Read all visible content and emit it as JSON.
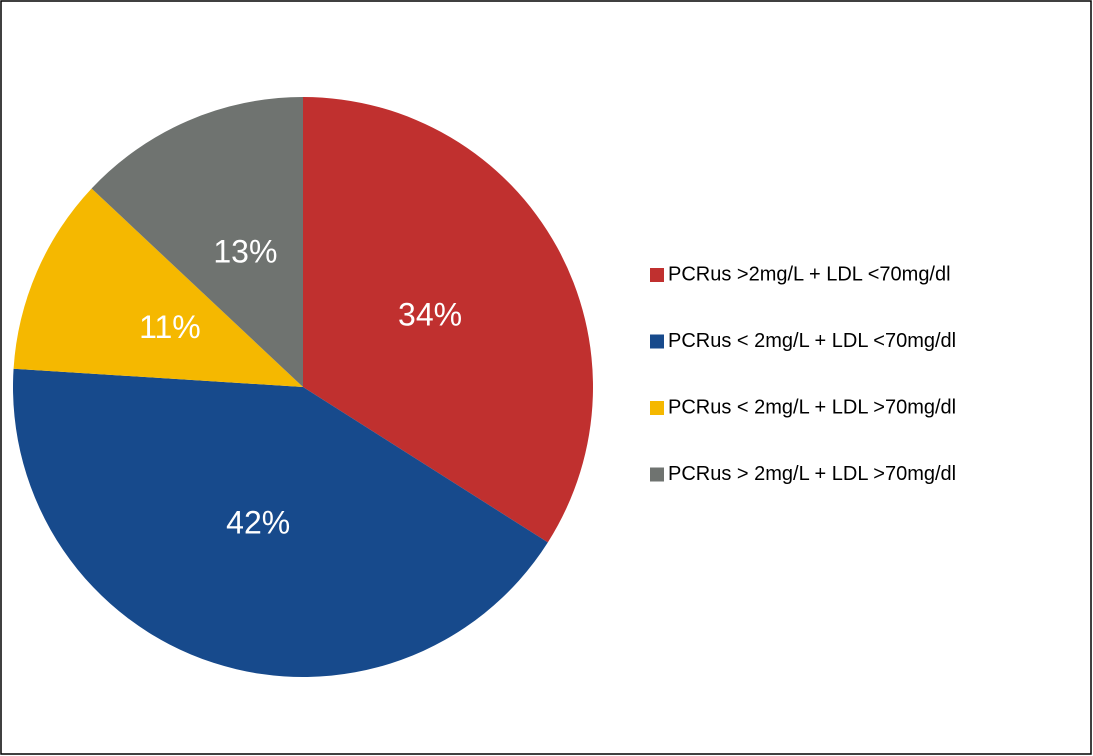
{
  "chart_data": {
    "type": "pie",
    "categories": [
      "PCRus >2mg/L + LDL <70mg/dl",
      "PCRus < 2mg/L + LDL <70mg/dl",
      "PCRus < 2mg/L + LDL >70mg/dl",
      "PCRus > 2mg/L + LDL >70mg/dl"
    ],
    "values": [
      34,
      42,
      11,
      13
    ],
    "value_labels": [
      "34%",
      "42%",
      "11%",
      "13%"
    ],
    "colors": [
      "#c0302f",
      "#174a8c",
      "#f5b800",
      "#6f7370"
    ],
    "legend": "right"
  }
}
